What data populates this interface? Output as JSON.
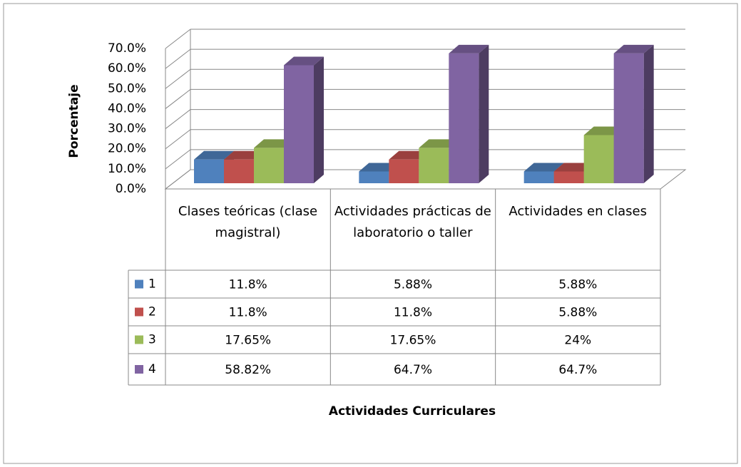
{
  "chart_data": {
    "type": "bar3d",
    "y_label": "Porcentaje",
    "x_label": "Actividades Curriculares",
    "categories": [
      "Clases teóricas (clase magistral)",
      "Actividades prácticas de laboratorio o taller",
      "Actividades en clases"
    ],
    "series": [
      {
        "name": "1",
        "color": "#4f81bd",
        "values": [
          11.8,
          5.88,
          5.88
        ],
        "value_labels": [
          "11.8%",
          "5.88%",
          "5.88%"
        ]
      },
      {
        "name": "2",
        "color": "#c0504d",
        "values": [
          11.8,
          11.8,
          5.88
        ],
        "value_labels": [
          "11.8%",
          "11.8%",
          "5.88%"
        ]
      },
      {
        "name": "3",
        "color": "#9bbb59",
        "values": [
          17.65,
          17.65,
          24
        ],
        "value_labels": [
          "17.65%",
          "17.65%",
          "24%"
        ]
      },
      {
        "name": "4",
        "color": "#8064a2",
        "values": [
          58.82,
          64.7,
          64.7
        ],
        "value_labels": [
          "58.82%",
          "64.7%",
          "64.7%"
        ]
      }
    ],
    "ylim": [
      0,
      70
    ],
    "yticks": [
      {
        "value": 0,
        "label": "0.0%"
      },
      {
        "value": 10,
        "label": "10.0%"
      },
      {
        "value": 20,
        "label": "20.0%"
      },
      {
        "value": 30,
        "label": "30.0%"
      },
      {
        "value": 40,
        "label": "40.0%"
      },
      {
        "value": 50,
        "label": "50.0%"
      },
      {
        "value": 60,
        "label": "60.0%"
      },
      {
        "value": 70,
        "label": "70.0%"
      }
    ],
    "grid": true
  }
}
